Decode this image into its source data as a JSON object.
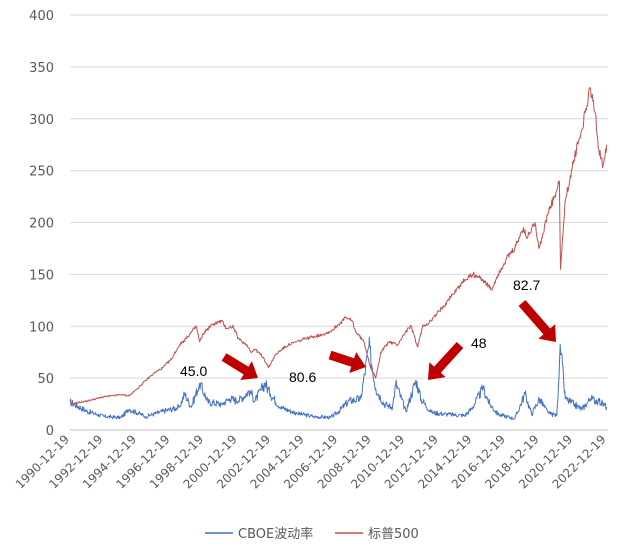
{
  "chart_data": {
    "type": "line",
    "title": "",
    "xlabel": "",
    "ylabel": "",
    "ylim": [
      0,
      400
    ],
    "yticks": [
      0,
      50,
      100,
      150,
      200,
      250,
      300,
      350,
      400
    ],
    "xlim": [
      "1990-12-19",
      "2023-01-19"
    ],
    "xticks": [
      "1990-12-19",
      "1992-12-19",
      "1994-12-19",
      "1996-12-19",
      "1998-12-19",
      "2000-12-19",
      "2002-12-19",
      "2004-12-19",
      "2006-12-19",
      "2008-12-19",
      "2010-12-19",
      "2012-12-19",
      "2014-12-19",
      "2016-12-19",
      "2018-12-19",
      "2020-12-19",
      "2022-12-19"
    ],
    "grid": true,
    "legend": "bottom",
    "series": [
      {
        "name": "CBOE波动率",
        "color": "#4472C4",
        "x": [
          1990.97,
          1992.0,
          1993.0,
          1994.0,
          1994.5,
          1995.5,
          1996.5,
          1997.5,
          1997.8,
          1998.2,
          1998.7,
          1999.2,
          2000.0,
          2000.5,
          2001.0,
          2001.7,
          2002.0,
          2002.6,
          2002.9,
          2003.5,
          2004.5,
          2005.5,
          2006.5,
          2007.0,
          2007.6,
          2008.3,
          2008.8,
          2009.2,
          2009.7,
          2010.2,
          2010.4,
          2011.0,
          2011.6,
          2011.9,
          2012.5,
          2013.5,
          2014.5,
          2014.9,
          2015.6,
          2016.0,
          2016.5,
          2017.5,
          2018.1,
          2018.5,
          2018.95,
          2019.5,
          2020.0,
          2020.2,
          2020.5,
          2021.0,
          2021.5,
          2022.0,
          2022.5,
          2022.97
        ],
        "values": [
          27,
          18,
          13,
          12,
          20,
          13,
          18,
          22,
          35,
          22,
          45.0,
          27,
          25,
          30,
          28,
          38,
          28,
          45,
          35,
          22,
          16,
          13,
          12,
          18,
          28,
          30,
          80.6,
          40,
          25,
          22,
          45,
          18,
          48,
          30,
          17,
          15,
          14,
          20,
          40,
          25,
          15,
          11,
          35,
          15,
          30,
          16,
          14,
          82.7,
          30,
          25,
          20,
          30,
          28,
          22
        ]
      },
      {
        "name": "标普500",
        "color": "#C0504D",
        "x": [
          1990.97,
          1992.0,
          1993.0,
          1994.0,
          1994.5,
          1995.0,
          1995.5,
          1996.0,
          1996.5,
          1997.0,
          1997.5,
          1998.0,
          1998.5,
          1998.7,
          1999.0,
          1999.5,
          2000.0,
          2000.3,
          2000.7,
          2001.0,
          2001.5,
          2001.8,
          2002.0,
          2002.5,
          2002.8,
          2003.2,
          2003.6,
          2004.0,
          2004.5,
          2005.0,
          2005.5,
          2006.0,
          2006.5,
          2007.0,
          2007.4,
          2007.8,
          2008.0,
          2008.5,
          2008.9,
          2009.2,
          2009.5,
          2010.0,
          2010.5,
          2011.0,
          2011.3,
          2011.7,
          2012.0,
          2012.5,
          2013.0,
          2013.5,
          2014.0,
          2014.5,
          2015.0,
          2015.6,
          2016.1,
          2016.5,
          2017.0,
          2017.5,
          2018.0,
          2018.2,
          2018.7,
          2018.95,
          2019.5,
          2020.0,
          2020.15,
          2020.22,
          2020.5,
          2021.0,
          2021.5,
          2021.98,
          2022.3,
          2022.5,
          2022.75,
          2022.97
        ],
        "values": [
          25,
          28,
          32,
          34,
          33,
          40,
          48,
          55,
          60,
          68,
          82,
          90,
          100,
          85,
          95,
          102,
          105,
          98,
          100,
          88,
          82,
          75,
          78,
          70,
          60,
          72,
          78,
          82,
          85,
          88,
          90,
          92,
          95,
          102,
          108,
          105,
          95,
          85,
          60,
          50,
          75,
          85,
          82,
          95,
          100,
          80,
          100,
          105,
          115,
          125,
          135,
          145,
          150,
          145,
          135,
          150,
          165,
          175,
          195,
          185,
          200,
          175,
          210,
          230,
          240,
          155,
          220,
          260,
          290,
          330,
          305,
          270,
          255,
          275
        ]
      }
    ],
    "annotations": [
      {
        "text": "45.0"
      },
      {
        "text": "80.6"
      },
      {
        "text": "48"
      },
      {
        "text": "82.7"
      }
    ]
  }
}
